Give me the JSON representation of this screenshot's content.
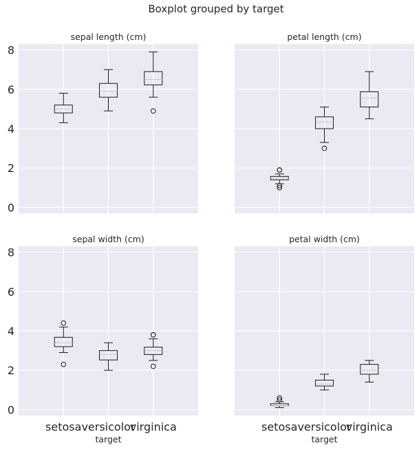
{
  "chart_data": {
    "type": "boxplot",
    "title": "Boxplot grouped by target",
    "xlabel": "target",
    "categories": [
      "setosa",
      "versicolor",
      "virginica"
    ],
    "ylim": [
      -0.3,
      8.3
    ],
    "yticks": [
      0,
      2,
      4,
      6,
      8
    ],
    "grid": true,
    "panels": [
      {
        "title": "sepal length (cm)",
        "boxes": [
          {
            "category": "setosa",
            "whisker_low": 4.3,
            "q1": 4.8,
            "median": 5.0,
            "q3": 5.2,
            "whisker_high": 5.8,
            "outliers": []
          },
          {
            "category": "versicolor",
            "whisker_low": 4.9,
            "q1": 5.6,
            "median": 5.9,
            "q3": 6.3,
            "whisker_high": 7.0,
            "outliers": []
          },
          {
            "category": "virginica",
            "whisker_low": 5.6,
            "q1": 6.225,
            "median": 6.5,
            "q3": 6.9,
            "whisker_high": 7.9,
            "outliers": [
              4.9
            ]
          }
        ]
      },
      {
        "title": "petal length (cm)",
        "boxes": [
          {
            "category": "setosa",
            "whisker_low": 1.2,
            "q1": 1.4,
            "median": 1.5,
            "q3": 1.575,
            "whisker_high": 1.7,
            "outliers": [
              1.0,
              1.1,
              1.9,
              1.9
            ]
          },
          {
            "category": "versicolor",
            "whisker_low": 3.3,
            "q1": 4.0,
            "median": 4.35,
            "q3": 4.6,
            "whisker_high": 5.1,
            "outliers": [
              3.0
            ]
          },
          {
            "category": "virginica",
            "whisker_low": 4.5,
            "q1": 5.1,
            "median": 5.55,
            "q3": 5.875,
            "whisker_high": 6.9,
            "outliers": []
          }
        ]
      },
      {
        "title": "sepal width (cm)",
        "boxes": [
          {
            "category": "setosa",
            "whisker_low": 2.9,
            "q1": 3.2,
            "median": 3.4,
            "q3": 3.675,
            "whisker_high": 4.2,
            "outliers": [
              2.3,
              4.4
            ]
          },
          {
            "category": "versicolor",
            "whisker_low": 2.0,
            "q1": 2.525,
            "median": 2.8,
            "q3": 3.0,
            "whisker_high": 3.4,
            "outliers": []
          },
          {
            "category": "virginica",
            "whisker_low": 2.5,
            "q1": 2.8,
            "median": 3.0,
            "q3": 3.175,
            "whisker_high": 3.6,
            "outliers": [
              2.2,
              3.8,
              3.8
            ]
          }
        ]
      },
      {
        "title": "petal width (cm)",
        "boxes": [
          {
            "category": "setosa",
            "whisker_low": 0.1,
            "q1": 0.2,
            "median": 0.2,
            "q3": 0.3,
            "whisker_high": 0.4,
            "outliers": [
              0.5,
              0.6
            ]
          },
          {
            "category": "versicolor",
            "whisker_low": 1.0,
            "q1": 1.2,
            "median": 1.3,
            "q3": 1.5,
            "whisker_high": 1.8,
            "outliers": []
          },
          {
            "category": "virginica",
            "whisker_low": 1.4,
            "q1": 1.8,
            "median": 2.0,
            "q3": 2.3,
            "whisker_high": 2.5,
            "outliers": []
          }
        ]
      }
    ]
  },
  "colors": {
    "plot_background": "#eaeaf2",
    "grid": "#ffffff",
    "box_stroke": "#1a1a1a",
    "median": "#c8c8c8",
    "text": "#262626"
  }
}
